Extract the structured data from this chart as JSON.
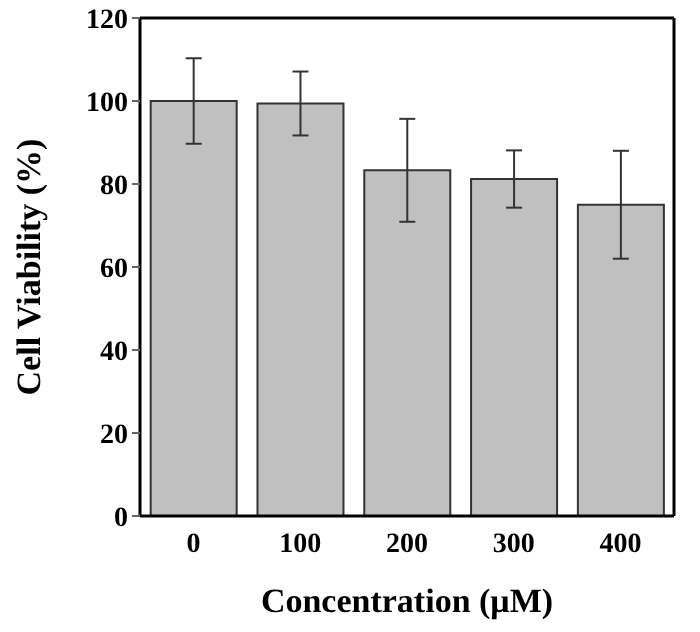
{
  "chart_data": {
    "type": "bar",
    "xlabel": "Concentration (μM)",
    "ylabel": "Cell Viability (%)",
    "categories": [
      "0",
      "100",
      "200",
      "300",
      "400"
    ],
    "values": [
      100,
      99.4,
      83.3,
      81.2,
      75
    ],
    "errors": [
      10.3,
      7.7,
      12.4,
      6.9,
      13
    ],
    "color": "#c0c0c0",
    "ylim": [
      0,
      120
    ],
    "yticks": [
      0,
      20,
      40,
      60,
      80,
      100,
      120
    ],
    "grid": false
  }
}
